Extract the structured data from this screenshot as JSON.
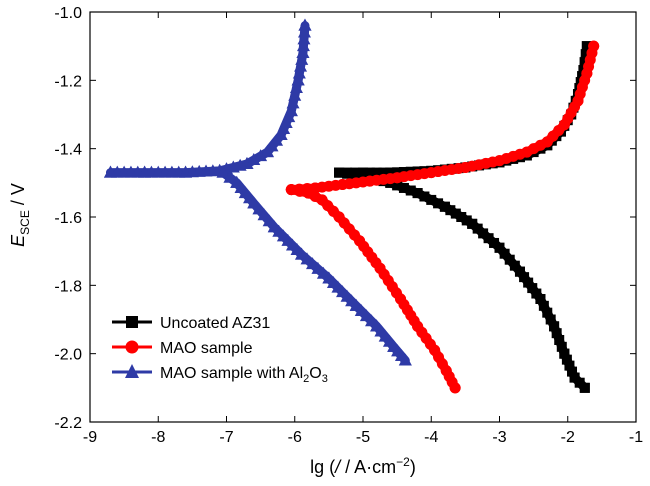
{
  "chart_data": {
    "type": "line",
    "xlabel": {
      "main": "lg (",
      "italic": "/",
      "rest": " / A·cm",
      "sup": "−2",
      "end": ")"
    },
    "ylabel": {
      "italic": "E",
      "sub": "SCE",
      "rest": " / V"
    },
    "xlim": [
      -9,
      -1
    ],
    "ylim": [
      -2.2,
      -1.0
    ],
    "y_reversed": true,
    "xticks": [
      -9,
      -8,
      -7,
      -6,
      -5,
      -4,
      -3,
      -2,
      -1
    ],
    "yticks": [
      -1.0,
      -1.2,
      -1.4,
      -1.6,
      -1.8,
      -2.0,
      -2.2
    ],
    "xtick_labels": [
      "-9",
      "-8",
      "-7",
      "-6",
      "-5",
      "-4",
      "-3",
      "-2",
      "-1"
    ],
    "ytick_labels": [
      "-1.0",
      "-1.2",
      "-1.4",
      "-1.6",
      "-1.8",
      "-2.0",
      "-2.2"
    ],
    "grid": false,
    "legend_position": "bottom-left",
    "series": [
      {
        "name": "Uncoated AZ31",
        "color": "#000000",
        "marker": "square",
        "anodic": [
          [
            -5.35,
            -1.47
          ],
          [
            -5.0,
            -1.47
          ],
          [
            -4.6,
            -1.47
          ],
          [
            -4.0,
            -1.465
          ],
          [
            -3.5,
            -1.455
          ],
          [
            -3.0,
            -1.44
          ],
          [
            -2.6,
            -1.42
          ],
          [
            -2.3,
            -1.39
          ],
          [
            -2.1,
            -1.35
          ],
          [
            -1.95,
            -1.3
          ],
          [
            -1.85,
            -1.24
          ],
          [
            -1.77,
            -1.17
          ],
          [
            -1.72,
            -1.1
          ]
        ],
        "cathodic": [
          [
            -5.35,
            -1.47
          ],
          [
            -5.0,
            -1.48
          ],
          [
            -4.6,
            -1.5
          ],
          [
            -4.2,
            -1.53
          ],
          [
            -3.8,
            -1.57
          ],
          [
            -3.4,
            -1.62
          ],
          [
            -3.0,
            -1.69
          ],
          [
            -2.7,
            -1.76
          ],
          [
            -2.4,
            -1.84
          ],
          [
            -2.2,
            -1.92
          ],
          [
            -2.05,
            -2.0
          ],
          [
            -1.9,
            -2.07
          ],
          [
            -1.75,
            -2.1
          ]
        ]
      },
      {
        "name": "MAO sample",
        "color": "#ff0000",
        "marker": "circle",
        "anodic": [
          [
            -6.05,
            -1.52
          ],
          [
            -5.7,
            -1.515
          ],
          [
            -5.3,
            -1.505
          ],
          [
            -4.9,
            -1.495
          ],
          [
            -4.5,
            -1.485
          ],
          [
            -4.0,
            -1.47
          ],
          [
            -3.5,
            -1.455
          ],
          [
            -3.0,
            -1.435
          ],
          [
            -2.6,
            -1.41
          ],
          [
            -2.3,
            -1.38
          ],
          [
            -2.05,
            -1.33
          ],
          [
            -1.85,
            -1.26
          ],
          [
            -1.72,
            -1.18
          ],
          [
            -1.62,
            -1.1
          ]
        ],
        "cathodic": [
          [
            -6.05,
            -1.52
          ],
          [
            -5.8,
            -1.53
          ],
          [
            -5.6,
            -1.55
          ],
          [
            -5.35,
            -1.6
          ],
          [
            -5.05,
            -1.67
          ],
          [
            -4.75,
            -1.75
          ],
          [
            -4.45,
            -1.84
          ],
          [
            -4.2,
            -1.92
          ],
          [
            -3.95,
            -1.99
          ],
          [
            -3.78,
            -2.05
          ],
          [
            -3.65,
            -2.1
          ]
        ]
      },
      {
        "name": "MAO sample with Al2O3",
        "name_main": "MAO sample with Al",
        "name_sub1": "2",
        "name_mid": "O",
        "name_sub2": "3",
        "color": "#2e3aa6",
        "marker": "triangle",
        "anodic": [
          [
            -8.7,
            -1.47
          ],
          [
            -8.2,
            -1.47
          ],
          [
            -7.6,
            -1.47
          ],
          [
            -7.1,
            -1.465
          ],
          [
            -6.7,
            -1.445
          ],
          [
            -6.4,
            -1.41
          ],
          [
            -6.2,
            -1.36
          ],
          [
            -6.05,
            -1.29
          ],
          [
            -5.95,
            -1.2
          ],
          [
            -5.88,
            -1.12
          ],
          [
            -5.85,
            -1.04
          ]
        ],
        "cathodic": [
          [
            -7.05,
            -1.47
          ],
          [
            -6.85,
            -1.5
          ],
          [
            -6.6,
            -1.56
          ],
          [
            -6.3,
            -1.63
          ],
          [
            -5.9,
            -1.71
          ],
          [
            -5.5,
            -1.78
          ],
          [
            -5.1,
            -1.86
          ],
          [
            -4.8,
            -1.92
          ],
          [
            -4.55,
            -1.98
          ],
          [
            -4.38,
            -2.02
          ]
        ]
      }
    ]
  }
}
